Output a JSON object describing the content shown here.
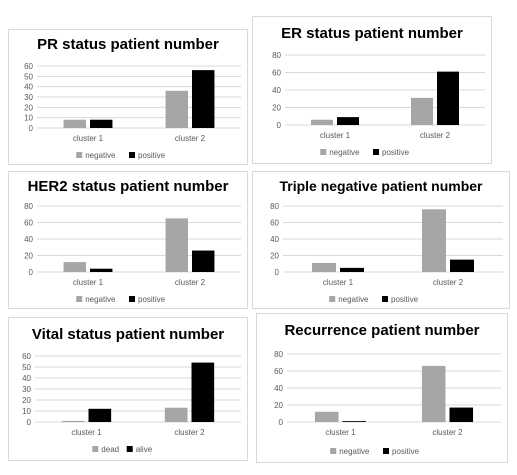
{
  "colors": {
    "series_a": "#a6a6a6",
    "series_b": "#000000",
    "grid": "#d9d9d9",
    "axis_text": "#595959"
  },
  "chart_data": [
    {
      "type": "bar",
      "title": "PR status patient number",
      "categories": [
        "cluster 1",
        "cluster 2"
      ],
      "series": [
        {
          "name": "negative",
          "values": [
            8,
            36
          ]
        },
        {
          "name": "positive",
          "values": [
            8,
            56
          ]
        }
      ],
      "ylim": [
        0,
        60
      ],
      "yticks": [
        "0",
        "10",
        "20",
        "30",
        "40",
        "50",
        "60"
      ],
      "grid": true,
      "legend": "bottom"
    },
    {
      "type": "bar",
      "title": "ER status patient number",
      "categories": [
        "cluster 1",
        "cluster 2"
      ],
      "series": [
        {
          "name": "negative",
          "values": [
            6,
            31
          ]
        },
        {
          "name": "positive",
          "values": [
            9,
            61
          ]
        }
      ],
      "ylim": [
        0,
        80
      ],
      "yticks": [
        "0",
        "20",
        "40",
        "60",
        "80"
      ],
      "grid": true,
      "legend": "bottom"
    },
    {
      "type": "bar",
      "title": "HER2 status patient number",
      "categories": [
        "cluster 1",
        "cluster 2"
      ],
      "series": [
        {
          "name": "negative",
          "values": [
            12,
            65
          ]
        },
        {
          "name": "positive",
          "values": [
            4,
            26
          ]
        }
      ],
      "ylim": [
        0,
        80
      ],
      "yticks": [
        "0",
        "20",
        "40",
        "60",
        "80"
      ],
      "grid": true,
      "legend": "bottom"
    },
    {
      "type": "bar",
      "title": "Triple negative patient number",
      "categories": [
        "cluster 1",
        "cluster 2"
      ],
      "series": [
        {
          "name": "negative",
          "values": [
            11,
            76
          ]
        },
        {
          "name": "positive",
          "values": [
            5,
            15
          ]
        }
      ],
      "ylim": [
        0,
        80
      ],
      "yticks": [
        "0",
        "20",
        "40",
        "60",
        "80"
      ],
      "grid": true,
      "legend": "bottom"
    },
    {
      "type": "bar",
      "title": "Vital status patient number",
      "categories": [
        "cluster 1",
        "cluster 2"
      ],
      "series": [
        {
          "name": "dead",
          "values": [
            1,
            13
          ]
        },
        {
          "name": "alive",
          "values": [
            12,
            54
          ]
        }
      ],
      "ylim": [
        0,
        60
      ],
      "yticks": [
        "0",
        "10",
        "20",
        "30",
        "40",
        "50",
        "60"
      ],
      "grid": true,
      "legend": "bottom"
    },
    {
      "type": "bar",
      "title": "Recurrence patient number",
      "categories": [
        "cluster 1",
        "cluster 2"
      ],
      "series": [
        {
          "name": "negative",
          "values": [
            12,
            66
          ]
        },
        {
          "name": "positive",
          "values": [
            1,
            17
          ]
        }
      ],
      "ylim": [
        0,
        80
      ],
      "yticks": [
        "0",
        "20",
        "40",
        "60",
        "80"
      ],
      "grid": true,
      "legend": "bottom"
    }
  ]
}
